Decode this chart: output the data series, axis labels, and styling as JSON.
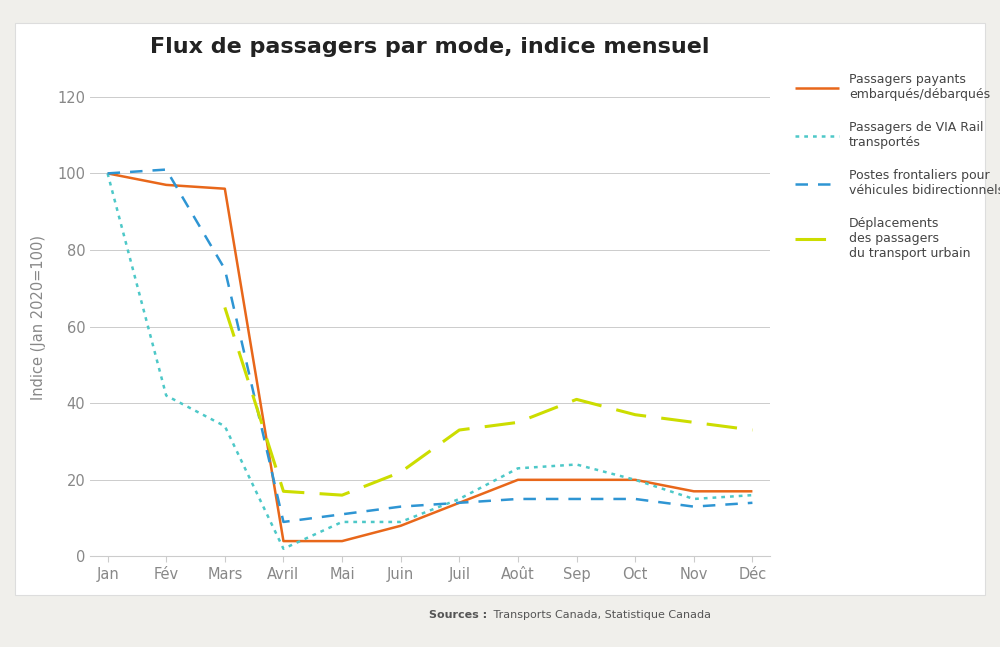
{
  "title": "Flux de passagers par mode, indice mensuel",
  "ylabel": "Indice (Jan 2020=100)",
  "source_bold": "Sources :",
  "source_normal": " Transports Canada, Statistique Canada",
  "months": [
    "Jan",
    "Fév",
    "Mars",
    "Avril",
    "Mai",
    "Juin",
    "Juil",
    "Août",
    "Sep",
    "Oct",
    "Nov",
    "Déc"
  ],
  "series": {
    "air": {
      "label": "Passagers payants\nembarqués/débarqués",
      "color": "#E8671A",
      "linewidth": 1.8,
      "linestyle_tuple": [
        0,
        []
      ],
      "values": [
        100,
        97,
        96,
        4,
        4,
        8,
        14,
        20,
        20,
        20,
        17,
        17
      ]
    },
    "via_rail": {
      "label": "Passagers de VIA Rail\ntransportés",
      "color": "#4DC8C8",
      "linewidth": 1.8,
      "linestyle_tuple": [
        0,
        [
          1.5,
          2.0
        ]
      ],
      "values": [
        100,
        42,
        34,
        2,
        9,
        9,
        15,
        23,
        24,
        20,
        15,
        16
      ]
    },
    "border": {
      "label": "Postes frontaliers pour\nvéhicules bidirectionnels",
      "color": "#2E95D3",
      "linewidth": 1.8,
      "linestyle_tuple": [
        0,
        [
          5,
          4
        ]
      ],
      "values": [
        100,
        101,
        75,
        9,
        11,
        13,
        14,
        15,
        15,
        15,
        13,
        14
      ]
    },
    "urban": {
      "label": "Déplacements\ndes passagers\ndu transport urbain",
      "color": "#CCDD00",
      "linewidth": 2.2,
      "linestyle_tuple": [
        0,
        [
          10,
          5
        ]
      ],
      "values": [
        null,
        null,
        65,
        17,
        16,
        22,
        33,
        35,
        41,
        37,
        35,
        33
      ]
    }
  },
  "ylim": [
    0,
    125
  ],
  "yticks": [
    0,
    20,
    40,
    60,
    80,
    100,
    120
  ],
  "plot_bg": "#FFFFFF",
  "fig_bg": "#FFFFFF",
  "outer_bg": "#F0EFEB",
  "grid_color": "#CCCCCC",
  "spine_color": "#CCCCCC",
  "tick_color": "#888888",
  "title_fontsize": 16,
  "tick_fontsize": 10.5,
  "ylabel_fontsize": 10.5,
  "legend_fontsize": 9,
  "source_fontsize": 8
}
